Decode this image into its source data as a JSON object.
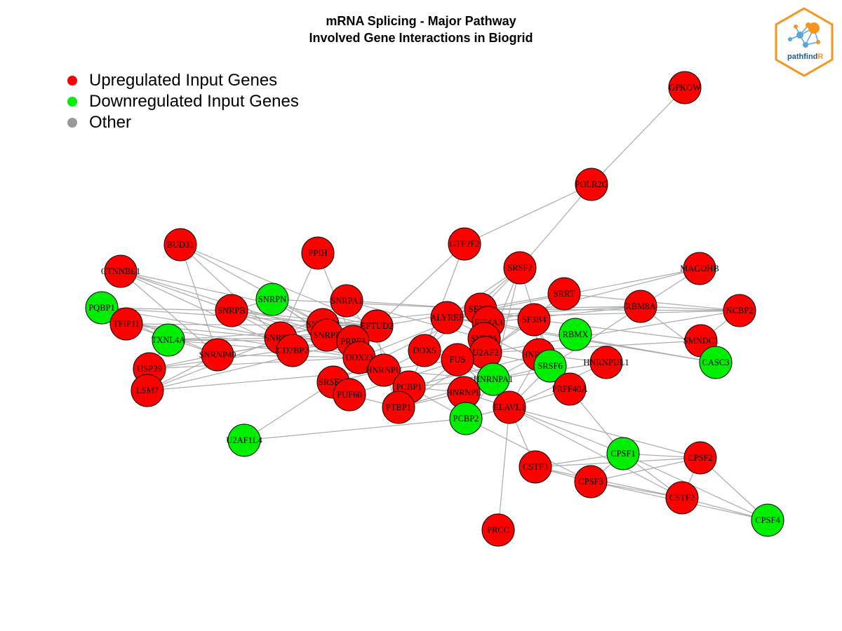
{
  "title": {
    "line1": "mRNA Splicing - Major Pathway",
    "line2": "Involved Gene Interactions in Biogrid"
  },
  "legend": {
    "items": [
      {
        "label": "Upregulated Input Genes",
        "color": "#ff0000"
      },
      {
        "label": "Downregulated Input Genes",
        "color": "#00ee00"
      },
      {
        "label": "Other",
        "color": "#999999"
      }
    ]
  },
  "logo": {
    "text_main": "pathfind",
    "text_accent": "R",
    "border_color": "#f7941d",
    "text_color": "#1f5a8a"
  },
  "colors": {
    "up": "#ff0000",
    "down": "#00ee00",
    "edge": "#aaaaaa"
  },
  "nodes": [
    {
      "id": "GPKOW",
      "status": "up"
    },
    {
      "id": "POLR2G",
      "status": "up"
    },
    {
      "id": "GTF2F2",
      "status": "up"
    },
    {
      "id": "BUD31",
      "status": "up"
    },
    {
      "id": "PPIH",
      "status": "up"
    },
    {
      "id": "SRSF2",
      "status": "up"
    },
    {
      "id": "MAGOHB",
      "status": "up"
    },
    {
      "id": "CTNNBL1",
      "status": "up"
    },
    {
      "id": "SRRT",
      "status": "up"
    },
    {
      "id": "SNRPN",
      "status": "down"
    },
    {
      "id": "SNRPA1",
      "status": "up"
    },
    {
      "id": "RBM8A",
      "status": "up"
    },
    {
      "id": "NCBP2",
      "status": "up"
    },
    {
      "id": "PQBP1",
      "status": "down"
    },
    {
      "id": "SNRPB",
      "status": "up"
    },
    {
      "id": "SF3B3",
      "status": "up"
    },
    {
      "id": "ALYREF",
      "status": "up"
    },
    {
      "id": "SF3B4",
      "status": "up"
    },
    {
      "id": "TFIP11",
      "status": "up"
    },
    {
      "id": "SNRPD2",
      "status": "up"
    },
    {
      "id": "EFTUD2",
      "status": "up"
    },
    {
      "id": "EIF4A3",
      "status": "up"
    },
    {
      "id": "RBMX",
      "status": "down"
    },
    {
      "id": "TXNL4A",
      "status": "down"
    },
    {
      "id": "SNRPD1",
      "status": "up"
    },
    {
      "id": "SNRPE",
      "status": "up"
    },
    {
      "id": "PRPF3",
      "status": "up"
    },
    {
      "id": "SNRPA",
      "status": "up"
    },
    {
      "id": "SMNDC1",
      "status": "up"
    },
    {
      "id": "CD2BP2",
      "status": "up"
    },
    {
      "id": "DDX5",
      "status": "up"
    },
    {
      "id": "U2AF2",
      "status": "up"
    },
    {
      "id": "HNRNPF",
      "status": "up"
    },
    {
      "id": "SNRNP40",
      "status": "up"
    },
    {
      "id": "DDX23",
      "status": "up"
    },
    {
      "id": "FUS",
      "status": "up"
    },
    {
      "id": "HNRNPUL1",
      "status": "up"
    },
    {
      "id": "CASC3",
      "status": "down"
    },
    {
      "id": "USP39",
      "status": "up"
    },
    {
      "id": "HNRNPU",
      "status": "up"
    },
    {
      "id": "SRSF6",
      "status": "down"
    },
    {
      "id": "SRSF10",
      "status": "up"
    },
    {
      "id": "HNRNPA1",
      "status": "down"
    },
    {
      "id": "PCBP1",
      "status": "up"
    },
    {
      "id": "LSM7",
      "status": "up"
    },
    {
      "id": "PRPF40A",
      "status": "up"
    },
    {
      "id": "PUF60",
      "status": "up"
    },
    {
      "id": "HNRNPL",
      "status": "up"
    },
    {
      "id": "PTBP1",
      "status": "up"
    },
    {
      "id": "ELAVL1",
      "status": "up"
    },
    {
      "id": "PCBP2",
      "status": "down"
    },
    {
      "id": "U2AF1L4",
      "status": "down"
    },
    {
      "id": "CPSF1",
      "status": "down"
    },
    {
      "id": "CPSF2",
      "status": "up"
    },
    {
      "id": "CSTF3",
      "status": "up"
    },
    {
      "id": "CPSF3",
      "status": "up"
    },
    {
      "id": "CSTF2",
      "status": "up"
    },
    {
      "id": "CPSF4",
      "status": "down"
    },
    {
      "id": "PRCC",
      "status": "up"
    }
  ],
  "edges": [
    [
      "GPKOW",
      "POLR2G"
    ],
    [
      "POLR2G",
      "GTF2F2"
    ],
    [
      "POLR2G",
      "SRSF2"
    ],
    [
      "GTF2F2",
      "DDX5"
    ],
    [
      "GTF2F2",
      "EFTUD2"
    ],
    [
      "BUD31",
      "SNRNP40"
    ],
    [
      "BUD31",
      "EFTUD2"
    ],
    [
      "BUD31",
      "CD2BP2"
    ],
    [
      "BUD31",
      "PRPF3"
    ],
    [
      "CTNNBL1",
      "EFTUD2"
    ],
    [
      "CTNNBL1",
      "SNRPB"
    ],
    [
      "CTNNBL1",
      "PRPF3"
    ],
    [
      "CTNNBL1",
      "CD2BP2"
    ],
    [
      "CTNNBL1",
      "SNRNP40"
    ],
    [
      "PPIH",
      "PRPF3"
    ],
    [
      "PPIH",
      "SNRPD1"
    ],
    [
      "SRSF2",
      "SRSF6"
    ],
    [
      "SRSF2",
      "U2AF2"
    ],
    [
      "SRSF2",
      "DDX5"
    ],
    [
      "SRSF2",
      "HNRNPA1"
    ],
    [
      "SRSF2",
      "SF3B3"
    ],
    [
      "SRSF2",
      "ALYREF"
    ],
    [
      "MAGOHB",
      "RBM8A"
    ],
    [
      "MAGOHB",
      "EIF4A3"
    ],
    [
      "MAGOHB",
      "ALYREF"
    ],
    [
      "SRRT",
      "NCBP2"
    ],
    [
      "SRRT",
      "SNRNP40"
    ],
    [
      "SRRT",
      "U2AF2"
    ],
    [
      "RBM8A",
      "EIF4A3"
    ],
    [
      "RBM8A",
      "ALYREF"
    ],
    [
      "RBM8A",
      "CASC3"
    ],
    [
      "RBM8A",
      "NCBP2"
    ],
    [
      "RBM8A",
      "SRSF6"
    ],
    [
      "RBM8A",
      "SF3B3"
    ],
    [
      "NCBP2",
      "ALYREF"
    ],
    [
      "NCBP2",
      "SF3B3"
    ],
    [
      "NCBP2",
      "U2AF2"
    ],
    [
      "NCBP2",
      "SMNDC1"
    ],
    [
      "PQBP1",
      "SNRPB"
    ],
    [
      "PQBP1",
      "TXNL4A"
    ],
    [
      "PQBP1",
      "SNRPD1"
    ],
    [
      "PQBP1",
      "EFTUD2"
    ],
    [
      "PQBP1",
      "SNRNP40"
    ],
    [
      "TFIP11",
      "SNRPD1"
    ],
    [
      "TFIP11",
      "EFTUD2"
    ],
    [
      "TFIP11",
      "DDX23"
    ],
    [
      "TFIP11",
      "SNRNP40"
    ],
    [
      "SNRPB",
      "SNRPD1"
    ],
    [
      "SNRPB",
      "SNRPD2"
    ],
    [
      "SNRPB",
      "SNRPE"
    ],
    [
      "SNRPB",
      "EFTUD2"
    ],
    [
      "SNRPB",
      "DDX23"
    ],
    [
      "SNRPB",
      "SNRPN"
    ],
    [
      "SNRPN",
      "SNRPE"
    ],
    [
      "SNRPN",
      "SNRPD2"
    ],
    [
      "SNRPN",
      "DDX23"
    ],
    [
      "SNRPN",
      "SF3B3"
    ],
    [
      "SNRPA1",
      "SNRPA"
    ],
    [
      "SNRPA1",
      "SF3B3"
    ],
    [
      "SNRPA1",
      "SNRPD1"
    ],
    [
      "SNRPA1",
      "PCBP1"
    ],
    [
      "SF3B3",
      "SF3B4"
    ],
    [
      "SF3B3",
      "U2AF2"
    ],
    [
      "SF3B3",
      "DDX23"
    ],
    [
      "SF3B3",
      "SNRPD2"
    ],
    [
      "SF3B4",
      "U2AF2"
    ],
    [
      "SF3B4",
      "HNRNPF"
    ],
    [
      "SF3B4",
      "SMNDC1"
    ],
    [
      "ALYREF",
      "EIF4A3"
    ],
    [
      "ALYREF",
      "DDX5"
    ],
    [
      "ALYREF",
      "SRSF6"
    ],
    [
      "TXNL4A",
      "SNRPD1"
    ],
    [
      "TXNL4A",
      "EFTUD2"
    ],
    [
      "TXNL4A",
      "PRPF3"
    ],
    [
      "TXNL4A",
      "CD2BP2"
    ],
    [
      "TXNL4A",
      "USP39"
    ],
    [
      "SNRPD1",
      "SNRPD2"
    ],
    [
      "SNRPD1",
      "SNRPE"
    ],
    [
      "SNRPD1",
      "EFTUD2"
    ],
    [
      "SNRPD1",
      "PRPF3"
    ],
    [
      "SNRPD1",
      "DDX23"
    ],
    [
      "SNRPD2",
      "SNRPE"
    ],
    [
      "SNRPD2",
      "EFTUD2"
    ],
    [
      "SNRPD2",
      "PRPF3"
    ],
    [
      "SNRPE",
      "PRPF3"
    ],
    [
      "SNRPE",
      "EFTUD2"
    ],
    [
      "EFTUD2",
      "PRPF3"
    ],
    [
      "EFTUD2",
      "DDX23"
    ],
    [
      "EFTUD2",
      "CD2BP2"
    ],
    [
      "EFTUD2",
      "SNRNP40"
    ],
    [
      "EFTUD2",
      "HNRNPU"
    ],
    [
      "SNRNP40",
      "USP39"
    ],
    [
      "SNRNP40",
      "LSM7"
    ],
    [
      "SNRNP40",
      "DDX23"
    ],
    [
      "USP39",
      "LSM7"
    ],
    [
      "USP39",
      "DDX23"
    ],
    [
      "USP39",
      "PRPF3"
    ],
    [
      "LSM7",
      "PRPF3"
    ],
    [
      "LSM7",
      "SNRPD1"
    ],
    [
      "LSM7",
      "HNRNPU"
    ],
    [
      "DDX5",
      "HNRNPU"
    ],
    [
      "DDX5",
      "FUS"
    ],
    [
      "DDX5",
      "HNRNPA1"
    ],
    [
      "DDX5",
      "U2AF2"
    ],
    [
      "DDX5",
      "PCBP1"
    ],
    [
      "FUS",
      "HNRNPA1"
    ],
    [
      "FUS",
      "HNRNPU"
    ],
    [
      "FUS",
      "PTBP1"
    ],
    [
      "FUS",
      "ELAVL1"
    ],
    [
      "FUS",
      "U2AF2"
    ],
    [
      "U2AF2",
      "SRSF6"
    ],
    [
      "U2AF2",
      "HNRNPA1"
    ],
    [
      "U2AF2",
      "PTBP1"
    ],
    [
      "U2AF2",
      "SMNDC1"
    ],
    [
      "HNRNPF",
      "HNRNPA1"
    ],
    [
      "HNRNPF",
      "ELAVL1"
    ],
    [
      "HNRNPF",
      "HNRNPUL1"
    ],
    [
      "HNRNPF",
      "PCBP1"
    ],
    [
      "HNRNPUL1",
      "ELAVL1"
    ],
    [
      "HNRNPUL1",
      "HNRNPA1"
    ],
    [
      "CASC3",
      "EIF4A3"
    ],
    [
      "CASC3",
      "ALYREF"
    ],
    [
      "SRSF6",
      "HNRNPA1"
    ],
    [
      "SRSF6",
      "ELAVL1"
    ],
    [
      "SRSF6",
      "PRPF40A"
    ],
    [
      "HNRNPU",
      "HNRNPA1"
    ],
    [
      "HNRNPU",
      "PCBP1"
    ],
    [
      "HNRNPU",
      "PTBP1"
    ],
    [
      "SRSF10",
      "HNRNPU"
    ],
    [
      "SRSF10",
      "PUF60"
    ],
    [
      "SRSF10",
      "U2AF1L4"
    ],
    [
      "SRSF10",
      "SF3B3"
    ],
    [
      "HNRNPA1",
      "PCBP1"
    ],
    [
      "HNRNPA1",
      "PCBP2"
    ],
    [
      "HNRNPA1",
      "ELAVL1"
    ],
    [
      "HNRNPA1",
      "HNRNPL"
    ],
    [
      "HNRNPA1",
      "PTBP1"
    ],
    [
      "PCBP1",
      "PCBP2"
    ],
    [
      "PCBP1",
      "PTBP1"
    ],
    [
      "PCBP1",
      "HNRNPL"
    ],
    [
      "PRPF40A",
      "ELAVL1"
    ],
    [
      "PRPF40A",
      "SF3B4"
    ],
    [
      "PRPF40A",
      "CPSF1"
    ],
    [
      "PUF60",
      "U2AF2"
    ],
    [
      "PUF60",
      "PTBP1"
    ],
    [
      "HNRNPL",
      "PTBP1"
    ],
    [
      "HNRNPL",
      "ELAVL1"
    ],
    [
      "ELAVL1",
      "PCBP2"
    ],
    [
      "ELAVL1",
      "CSTF3"
    ],
    [
      "ELAVL1",
      "CPSF1"
    ],
    [
      "ELAVL1",
      "CPSF2"
    ],
    [
      "ELAVL1",
      "PRCC"
    ],
    [
      "ELAVL1",
      "CSTF2"
    ],
    [
      "PCBP2",
      "U2AF1L4"
    ],
    [
      "PCBP2",
      "CPSF3"
    ],
    [
      "CPSF1",
      "CPSF2"
    ],
    [
      "CPSF1",
      "CPSF3"
    ],
    [
      "CPSF1",
      "CSTF2"
    ],
    [
      "CPSF1",
      "CSTF3"
    ],
    [
      "CPSF1",
      "CPSF4"
    ],
    [
      "CPSF2",
      "CPSF3"
    ],
    [
      "CPSF2",
      "CSTF2"
    ],
    [
      "CPSF2",
      "CSTF3"
    ],
    [
      "CPSF2",
      "CPSF4"
    ],
    [
      "CSTF3",
      "CPSF3"
    ],
    [
      "CSTF3",
      "CSTF2"
    ],
    [
      "CPSF3",
      "CSTF2"
    ],
    [
      "CPSF3",
      "CPSF4"
    ],
    [
      "CSTF2",
      "CPSF4"
    ]
  ]
}
